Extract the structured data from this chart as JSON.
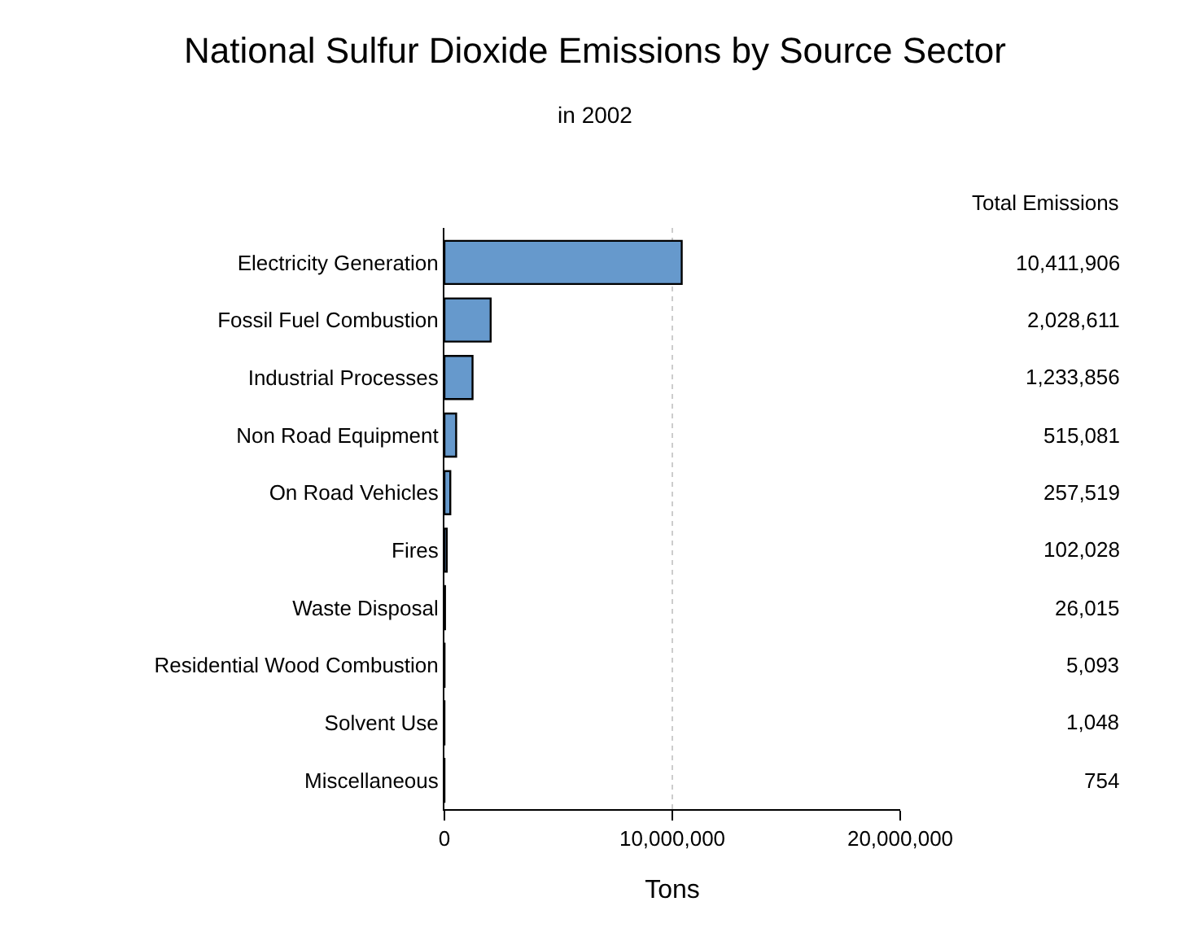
{
  "chart_data": {
    "type": "bar",
    "orientation": "horizontal",
    "title": "National Sulfur Dioxide Emissions by Source Sector",
    "subtitle": "in 2002",
    "xlabel": "Tons",
    "categories": [
      "Electricity Generation",
      "Fossil Fuel Combustion",
      "Industrial Processes",
      "Non Road Equipment",
      "On Road Vehicles",
      "Fires",
      "Waste Disposal",
      "Residential Wood Combustion",
      "Solvent Use",
      "Miscellaneous"
    ],
    "values": [
      10411906,
      2028611,
      1233856,
      515081,
      257519,
      102028,
      26015,
      5093,
      1048,
      754
    ],
    "value_labels": [
      "10,411,906",
      "2,028,611",
      "1,233,856",
      "515,081",
      "257,519",
      "102,028",
      "26,015",
      "5,093",
      "1,048",
      "754"
    ],
    "color": "#6699cc",
    "xlim": [
      0,
      20000000
    ],
    "xticks": [
      {
        "value": 0,
        "label": "0"
      },
      {
        "value": 10000000,
        "label": "10,000,000"
      },
      {
        "value": 20000000,
        "label": "20,000,000"
      }
    ],
    "grid": "x",
    "annotations": [
      "Total Emissions"
    ]
  }
}
